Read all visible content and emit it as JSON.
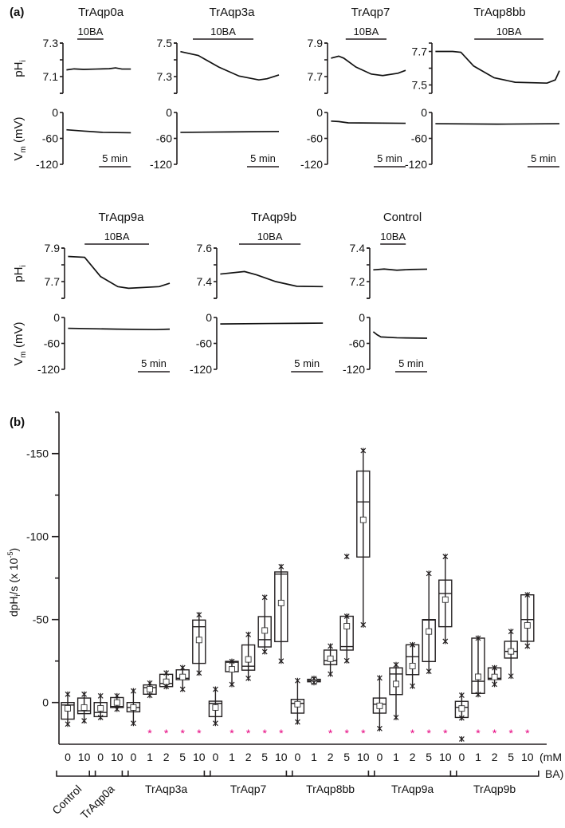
{
  "panel_a": {
    "label": "(a)",
    "stimulus_label": "10BA",
    "scale_bar_label": "5 min",
    "ph_ylabel": "pH",
    "ph_ylabel_sub": "i",
    "vm_ylabel": "V",
    "vm_ylabel_sub": "m",
    "vm_ylabel_unit": " (mV)",
    "vm_range": [
      -120,
      0
    ],
    "vm_tick_labels": [
      "0",
      "-60",
      "-120"
    ],
    "scale_bar_min": 5,
    "traces": [
      {
        "name": "TrAqp0a",
        "duration_min": 10.4,
        "stimulus_min": [
          2.0,
          6.1
        ],
        "ph_range": [
          7.0,
          7.3
        ],
        "ph_ticks": [
          7.0,
          7.1,
          7.2,
          7.3
        ],
        "ph_tick_labels": [
          "7.3",
          "7.1"
        ],
        "ph": [
          [
            0.3,
            7.14
          ],
          [
            1.5,
            7.146
          ],
          [
            3,
            7.143
          ],
          [
            5,
            7.145
          ],
          [
            7,
            7.147
          ],
          [
            8,
            7.152
          ],
          [
            9,
            7.145
          ],
          [
            10.4,
            7.145
          ]
        ],
        "vm": [
          [
            0.3,
            -40
          ],
          [
            3,
            -43
          ],
          [
            6,
            -46
          ],
          [
            10.4,
            -47
          ]
        ]
      },
      {
        "name": "TrAqp3a",
        "duration_min": 15.75,
        "stimulus_min": [
          2.25,
          11.75
        ],
        "ph_range": [
          7.2,
          7.5
        ],
        "ph_ticks": [
          7.2,
          7.3,
          7.4,
          7.5
        ],
        "ph_tick_labels": [
          "7.5",
          "7.3"
        ],
        "ph": [
          [
            0.3,
            7.449
          ],
          [
            3.1,
            7.426
          ],
          [
            6.3,
            7.357
          ],
          [
            9.5,
            7.303
          ],
          [
            12.6,
            7.28
          ],
          [
            13.9,
            7.287
          ],
          [
            15.75,
            7.31
          ]
        ],
        "vm": [
          [
            0.3,
            -46
          ],
          [
            8,
            -45
          ],
          [
            15.75,
            -44
          ]
        ]
      },
      {
        "name": "TrAqp7",
        "duration_min": 12.0,
        "stimulus_min": [
          2.6,
          9.0
        ],
        "ph_range": [
          7.6,
          7.9
        ],
        "ph_ticks": [
          7.6,
          7.7,
          7.8,
          7.9
        ],
        "ph_tick_labels": [
          "7.9",
          "7.7"
        ],
        "ph": [
          [
            0.3,
            7.81
          ],
          [
            1.5,
            7.822
          ],
          [
            2.3,
            7.81
          ],
          [
            4.2,
            7.757
          ],
          [
            6.6,
            7.715
          ],
          [
            8.4,
            7.706
          ],
          [
            10.8,
            7.72
          ],
          [
            12.0,
            7.737
          ]
        ],
        "vm": [
          [
            0.3,
            -20
          ],
          [
            1.5,
            -21
          ],
          [
            3,
            -24
          ],
          [
            12,
            -25
          ]
        ]
      },
      {
        "name": "TrAqp8bb",
        "duration_min": 19.75,
        "stimulus_min": [
          6.4,
          17.25
        ],
        "ph_range": [
          7.45,
          7.75
        ],
        "ph_ticks": [
          7.5,
          7.6,
          7.7
        ],
        "ph_tick_labels": [
          "7.7",
          "7.5"
        ],
        "ph": [
          [
            0.3,
            7.7
          ],
          [
            3,
            7.7
          ],
          [
            4.3,
            7.695
          ],
          [
            6.3,
            7.613
          ],
          [
            9.5,
            7.543
          ],
          [
            12.8,
            7.516
          ],
          [
            17.8,
            7.511
          ],
          [
            19.1,
            7.53
          ],
          [
            19.75,
            7.585
          ]
        ],
        "vm": [
          [
            0.3,
            -26
          ],
          [
            10,
            -27
          ],
          [
            19.75,
            -26
          ]
        ]
      },
      {
        "name": "TrAqp9a",
        "duration_min": 16.25,
        "stimulus_min": [
          2.9,
          13.0
        ],
        "ph_range": [
          7.6,
          7.9
        ],
        "ph_ticks": [
          7.6,
          7.7,
          7.8,
          7.9
        ],
        "ph_tick_labels": [
          "7.9",
          "7.7"
        ],
        "ph": [
          [
            0.3,
            7.85
          ],
          [
            2.9,
            7.845
          ],
          [
            5.4,
            7.73
          ],
          [
            8.1,
            7.67
          ],
          [
            9.8,
            7.66
          ],
          [
            14.6,
            7.67
          ],
          [
            16.25,
            7.69
          ]
        ],
        "vm": [
          [
            0.3,
            -25
          ],
          [
            8,
            -27
          ],
          [
            14,
            -28
          ],
          [
            16.25,
            -27
          ]
        ]
      },
      {
        "name": "TrAqp9b",
        "duration_min": 16.4,
        "stimulus_min": [
          3.25,
          12.9
        ],
        "ph_range": [
          7.3,
          7.6
        ],
        "ph_ticks": [
          7.3,
          7.4,
          7.5,
          7.6
        ],
        "ph_tick_labels": [
          "7.6",
          "7.4"
        ],
        "ph": [
          [
            0.3,
            7.445
          ],
          [
            4.1,
            7.46
          ],
          [
            6,
            7.44
          ],
          [
            9,
            7.4
          ],
          [
            12.3,
            7.372
          ],
          [
            16.4,
            7.37
          ]
        ],
        "vm": [
          [
            0.3,
            -15
          ],
          [
            8,
            -14
          ],
          [
            16.4,
            -13
          ]
        ]
      },
      {
        "name": "Control",
        "duration_min": 8.75,
        "stimulus_min": [
          1.4,
          5.4
        ],
        "ph_range": [
          7.1,
          7.4
        ],
        "ph_ticks": [
          7.1,
          7.2,
          7.3,
          7.4
        ],
        "ph_tick_labels": [
          "7.4",
          "7.2"
        ],
        "ph": [
          [
            0.3,
            7.27
          ],
          [
            2,
            7.275
          ],
          [
            4,
            7.268
          ],
          [
            6,
            7.272
          ],
          [
            8.75,
            7.274
          ]
        ],
        "vm": [
          [
            0.3,
            -33
          ],
          [
            0.9,
            -40
          ],
          [
            1.5,
            -45
          ],
          [
            4,
            -47
          ],
          [
            8.75,
            -48
          ]
        ]
      }
    ]
  },
  "chart_data": {
    "type": "box",
    "panel_label": "(b)",
    "ylabel": "dpHi/s (x 10-5)",
    "ylabel_parts": {
      "main": "dpH",
      "sub": "i",
      "rest": "/s (x 10",
      "sup": "-5",
      "close": ")"
    },
    "ylim": [
      25,
      -175
    ],
    "yticks": [
      0,
      -50,
      -100,
      -150
    ],
    "ytick_labels": [
      "0",
      "-50",
      "-100",
      "-150"
    ],
    "xunit_label_line1": "(mM",
    "xunit_label_line2": "BA)",
    "significance_marker": "*",
    "significance_color": "#e6007e",
    "groups": [
      {
        "name": "Control",
        "rotated": true,
        "boxes": [
          {
            "dose": "0",
            "whiskers": [
              -5,
              13
            ],
            "box": [
              0,
              10
            ],
            "median": 1.5,
            "mean": 3.5,
            "sig": false
          },
          {
            "dose": "10",
            "whiskers": [
              -5,
              11
            ],
            "box": [
              -2.7,
              6.7
            ],
            "median": 5,
            "mean": 3,
            "sig": false
          }
        ]
      },
      {
        "name": "TrAqp0a",
        "rotated": true,
        "boxes": [
          {
            "dose": "0",
            "whiskers": [
              -4,
              9
            ],
            "box": [
              0,
              8.5
            ],
            "median": 6,
            "mean": 3.5,
            "sig": false
          },
          {
            "dose": "10",
            "whiskers": [
              -4,
              4
            ],
            "box": [
              -3,
              3
            ],
            "median": 2.4,
            "mean": 0,
            "sig": false
          }
        ]
      },
      {
        "name": "TrAqp3a",
        "rotated": false,
        "boxes": [
          {
            "dose": "0",
            "whiskers": [
              -7,
              12.5
            ],
            "box": [
              0,
              5.6
            ],
            "median": 3,
            "mean": 3,
            "sig": false
          },
          {
            "dose": "1",
            "whiskers": [
              -11.7,
              -4.3
            ],
            "box": [
              -10.6,
              -5
            ],
            "median": -9,
            "mean": -8,
            "sig": true
          },
          {
            "dose": "2",
            "whiskers": [
              -17.8,
              -9.6
            ],
            "box": [
              -17,
              -9.6
            ],
            "median": -11.5,
            "mean": -12.5,
            "sig": true
          },
          {
            "dose": "5",
            "whiskers": [
              -21,
              -8
            ],
            "box": [
              -19.7,
              -13.8
            ],
            "median": -14.6,
            "mean": -15.4,
            "sig": true
          },
          {
            "dose": "10",
            "whiskers": [
              -52.9,
              -17.8
            ],
            "box": [
              -49.7,
              -23.6
            ],
            "median": -45.7,
            "mean": -37.7,
            "sig": true
          }
        ]
      },
      {
        "name": "TrAqp7",
        "rotated": false,
        "boxes": [
          {
            "dose": "0",
            "whiskers": [
              -8,
              12.5
            ],
            "box": [
              -0.8,
              8.5
            ],
            "median": 0.5,
            "mean": 3,
            "sig": false
          },
          {
            "dose": "1",
            "whiskers": [
              -24.8,
              -10.9
            ],
            "box": [
              -24.8,
              -18.6
            ],
            "median": -24.3,
            "mean": -20,
            "sig": true
          },
          {
            "dose": "2",
            "whiskers": [
              -41,
              -14.6
            ],
            "box": [
              -34.7,
              -19.5
            ],
            "median": -21.9,
            "mean": -26,
            "sig": true
          },
          {
            "dose": "5",
            "whiskers": [
              -63.4,
              -30.6
            ],
            "box": [
              -51.8,
              -33.5
            ],
            "median": -37.9,
            "mean": -43.4,
            "sig": true
          },
          {
            "dose": "10",
            "whiskers": [
              -81.9,
              -25
            ],
            "box": [
              -78.7,
              -36.7
            ],
            "median": -77.4,
            "mean": -60,
            "sig": true
          }
        ]
      },
      {
        "name": "TrAqp8bb",
        "rotated": false,
        "boxes": [
          {
            "dose": "0",
            "whiskers": [
              -13.2,
              11.7
            ],
            "box": [
              -1.9,
              6.4
            ],
            "median": 0.5,
            "mean": 1,
            "sig": false
          },
          {
            "dose": "1",
            "whiskers": [
              -14.5,
              -12
            ],
            "box": [
              -14,
              -12.5
            ],
            "median": -13.2,
            "mean": -13.2,
            "sig": false
          },
          {
            "dose": "2",
            "whiskers": [
              -34,
              -17.2
            ],
            "box": [
              -31.6,
              -22.8
            ],
            "median": -25.2,
            "mean": -26.4,
            "sig": true
          },
          {
            "dose": "5",
            "whiskers": [
              -52,
              -25.2
            ],
            "box": [
              -52,
              -31.6
            ],
            "median": -33.7,
            "mean": -46,
            "outliers": [
              -88
            ],
            "sig": true
          },
          {
            "dose": "10",
            "whiskers": [
              -151.8,
              -46.8
            ],
            "box": [
              -139.5,
              -87.7
            ],
            "median": -120.9,
            "mean": -110.1,
            "sig": true
          }
        ]
      },
      {
        "name": "TrAqp9a",
        "rotated": false,
        "boxes": [
          {
            "dose": "0",
            "whiskers": [
              -14.8,
              15.7
            ],
            "box": [
              -2.7,
              6.4
            ],
            "median": 1,
            "mean": 2,
            "sig": false
          },
          {
            "dose": "1",
            "whiskers": [
              -22.8,
              9
            ],
            "box": [
              -20.9,
              -4.8
            ],
            "median": -17.2,
            "mean": -11.2,
            "sig": false
          },
          {
            "dose": "2",
            "whiskers": [
              -34.8,
              -9.9
            ],
            "box": [
              -34.8,
              -16.8
            ],
            "median": -27.6,
            "mean": -22,
            "sig": true
          },
          {
            "dose": "5",
            "whiskers": [
              -77.8,
              -18.8
            ],
            "box": [
              -50,
              -24.7
            ],
            "median": -49.7,
            "mean": -42.8,
            "sig": true
          },
          {
            "dose": "10",
            "whiskers": [
              -88,
              -36.9
            ],
            "box": [
              -73.8,
              -45.7
            ],
            "median": -65.7,
            "mean": -62,
            "sig": true
          }
        ]
      },
      {
        "name": "TrAqp9b",
        "rotated": false,
        "boxes": [
          {
            "dose": "0",
            "whiskers": [
              -4.4,
              9.3
            ],
            "box": [
              -0.7,
              9
            ],
            "median": 2.9,
            "mean": 3.6,
            "outliers": [
              22
            ],
            "sig": false
          },
          {
            "dose": "1",
            "whiskers": [
              -38.8,
              -4.8
            ],
            "box": [
              -38.8,
              -5.5
            ],
            "median": -12.8,
            "mean": -15.5,
            "sig": true
          },
          {
            "dose": "2",
            "whiskers": [
              -20.9,
              -11
            ],
            "box": [
              -20.9,
              -13.9
            ],
            "median": -14.6,
            "mean": -15.4,
            "sig": true
          },
          {
            "dose": "5",
            "whiskers": [
              -42.8,
              -15.9
            ],
            "box": [
              -36.9,
              -26.8
            ],
            "median": -30.8,
            "mean": -30.8,
            "sig": true
          },
          {
            "dose": "10",
            "whiskers": [
              -64.9,
              -34
            ],
            "box": [
              -64.9,
              -36.9
            ],
            "median": -50,
            "mean": -46.5,
            "sig": true
          }
        ]
      }
    ]
  }
}
